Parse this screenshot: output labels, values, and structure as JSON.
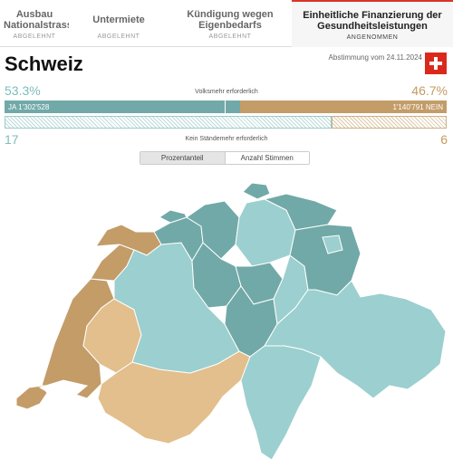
{
  "tabs": [
    {
      "title": "Ausbau Nationalstrassen",
      "status": "ABGELEHNT"
    },
    {
      "title": "Untermiete",
      "status": "ABGELEHNT"
    },
    {
      "title": "Kündigung wegen Eigenbedarfs",
      "status": "ABGELEHNT"
    },
    {
      "title": "Einheitliche Finanzierung der Gesundheitsleistungen",
      "status": "ANGENOMMEN"
    }
  ],
  "header": {
    "title": "Schweiz",
    "date": "Abstimmung vom 24.11.2024"
  },
  "popular": {
    "yes_pct": "53.3%",
    "no_pct": "46.7%",
    "label": "Volksmehr erforderlich",
    "yes_votes": "JA 1'302'528",
    "no_votes": "1'140'791 NEIN",
    "yes_share": 0.533
  },
  "cantons": {
    "yes": "17",
    "no": "6",
    "label": "Kein Ständemehr erforderlich"
  },
  "toggle": {
    "option1": "Prozentanteil",
    "option2": "Anzahl Stimmen"
  },
  "colors": {
    "yes_strong": "#71a9a8",
    "yes_light": "#9ccfcf",
    "no_strong": "#c39c68",
    "no_light": "#e2bf8c",
    "accent": "#d9362a"
  }
}
